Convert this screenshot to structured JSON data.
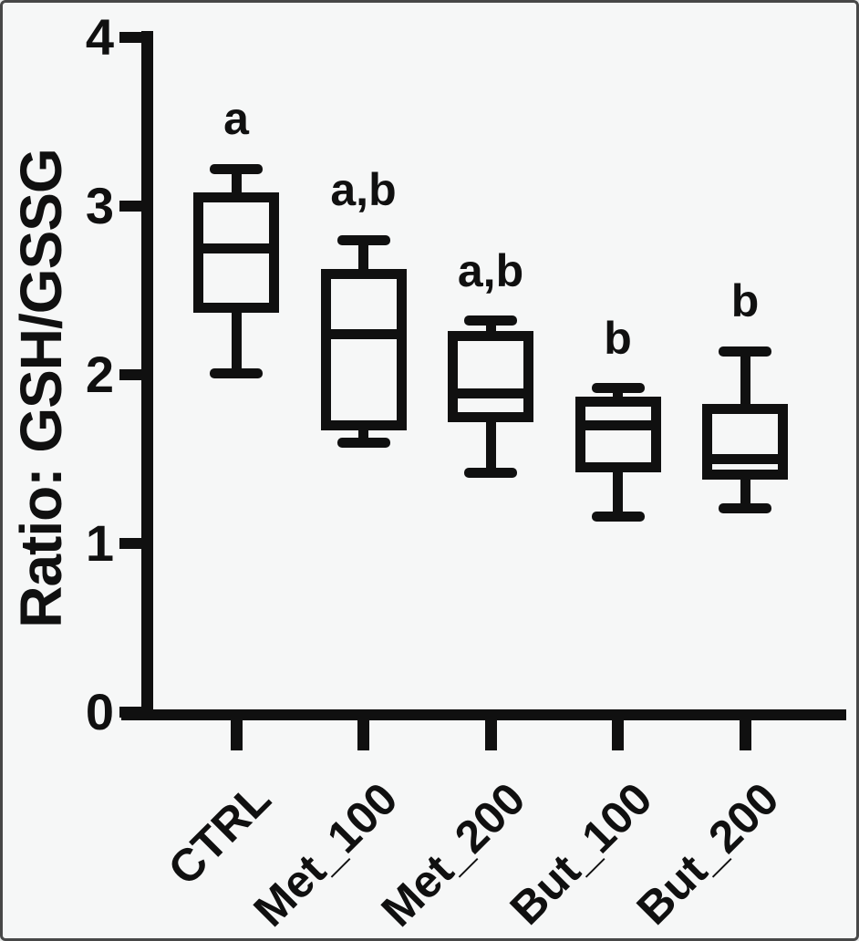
{
  "figure": {
    "background": "#f6f7f7",
    "ink_color": "#101010",
    "border_color": "#474747"
  },
  "chart_data": {
    "type": "boxplot",
    "title": "",
    "xlabel": "",
    "ylabel": "Ratio: GSH/GSSG",
    "ylim": [
      0,
      4
    ],
    "yticks": [
      "0",
      "1",
      "2",
      "3",
      "4"
    ],
    "grid": false,
    "legend": null,
    "box_style": {
      "fill": "none",
      "stroke": "#101010",
      "whisker_caps": true
    },
    "categories": [
      "CTRL",
      "Met_100",
      "Met_200",
      "But_100",
      "But_200"
    ],
    "series": [
      {
        "category": "CTRL",
        "min": 2.01,
        "q1": 2.4,
        "median": 2.75,
        "q3": 3.05,
        "max": 3.22,
        "significance": "a"
      },
      {
        "category": "Met_100",
        "min": 1.6,
        "q1": 1.7,
        "median": 2.24,
        "q3": 2.6,
        "max": 2.8,
        "significance": "a,b"
      },
      {
        "category": "Met_200",
        "min": 1.42,
        "q1": 1.75,
        "median": 1.89,
        "q3": 2.23,
        "max": 2.32,
        "significance": "a,b"
      },
      {
        "category": "But_100",
        "min": 1.16,
        "q1": 1.45,
        "median": 1.7,
        "q3": 1.84,
        "max": 1.92,
        "significance": "b"
      },
      {
        "category": "But_200",
        "min": 1.21,
        "q1": 1.41,
        "median": 1.5,
        "q3": 1.8,
        "max": 2.14,
        "significance": "b"
      }
    ]
  }
}
